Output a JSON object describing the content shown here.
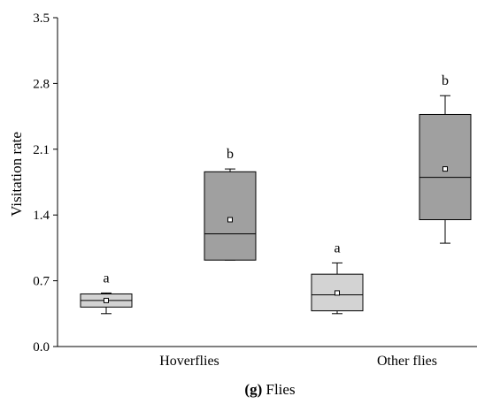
{
  "chart_data": {
    "type": "boxplot",
    "caption": {
      "panel": "(g)",
      "text": "Flies"
    },
    "ylabel": "Visitation rate",
    "ylim": [
      0.0,
      3.5
    ],
    "yticks": [
      "0.0",
      "0.7",
      "1.4",
      "2.1",
      "2.8",
      "3.5"
    ],
    "yticks_values": [
      0.0,
      0.7,
      1.4,
      2.1,
      2.8,
      3.5
    ],
    "categories": [
      "Hoverflies",
      "Other flies"
    ],
    "boxes": [
      {
        "category": "Hoverflies",
        "fill": "#d3d3d3",
        "whisker_low": 0.35,
        "q1": 0.42,
        "median": 0.49,
        "q3": 0.56,
        "whisker_high": 0.57,
        "mean": 0.49,
        "letter": "a"
      },
      {
        "category": "Hoverflies",
        "fill": "#a0a0a0",
        "whisker_low": 0.92,
        "q1": 0.92,
        "median": 1.2,
        "q3": 1.86,
        "whisker_high": 1.89,
        "mean": 1.35,
        "letter": "b"
      },
      {
        "category": "Other flies",
        "fill": "#d3d3d3",
        "whisker_low": 0.35,
        "q1": 0.38,
        "median": 0.55,
        "q3": 0.77,
        "whisker_high": 0.89,
        "mean": 0.57,
        "letter": "a"
      },
      {
        "category": "Other flies",
        "fill": "#a0a0a0",
        "whisker_low": 1.1,
        "q1": 1.35,
        "median": 1.8,
        "q3": 2.47,
        "whisker_high": 2.67,
        "mean": 1.89,
        "letter": "b"
      }
    ],
    "colors": {
      "light_box": "#d3d3d3",
      "dark_box": "#a0a0a0",
      "stroke": "#000000"
    }
  }
}
